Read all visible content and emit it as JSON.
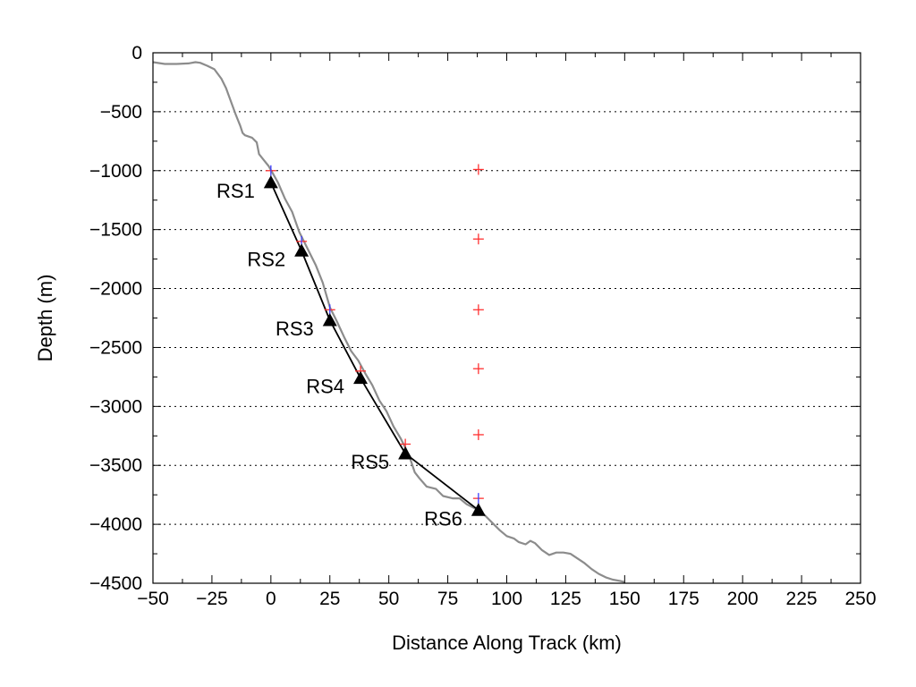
{
  "chart_data": {
    "type": "line",
    "title": "",
    "xlabel": "Distance Along Track (km)",
    "ylabel": "Depth (m)",
    "xlim": [
      -50,
      250
    ],
    "ylim": [
      -4500,
      0
    ],
    "xticks": [
      -50,
      -25,
      0,
      25,
      50,
      75,
      100,
      125,
      150,
      175,
      200,
      225,
      250
    ],
    "yticks": [
      0,
      -500,
      -1000,
      -1500,
      -2000,
      -2500,
      -3000,
      -3500,
      -4000,
      -4500
    ],
    "xtick_labels": [
      "−50",
      "−25",
      "0",
      "25",
      "50",
      "75",
      "100",
      "125",
      "150",
      "175",
      "200",
      "225",
      "250"
    ],
    "ytick_labels": [
      "0",
      "−500",
      "−1000",
      "−1500",
      "−2000",
      "−2500",
      "−3000",
      "−3500",
      "−4000",
      "−4500"
    ],
    "grid": {
      "horizontal_dotted": true,
      "vertical": false
    },
    "colors": {
      "bathymetry": "#8c8c8c",
      "track": "#000000",
      "station_marker": "#000000",
      "red_cross": "#ff3030",
      "blue_cross": "#3a3aff",
      "grid": "#000000"
    },
    "series": [
      {
        "kind": "bathymetry",
        "x": [
          -50,
          -45,
          -40,
          -35,
          -32,
          -30,
          -27,
          -24,
          -21,
          -19,
          -17,
          -15,
          -13,
          -12,
          -11,
          -8,
          -6,
          -5,
          -3,
          -1,
          1,
          3,
          6,
          9,
          12,
          15,
          19,
          22,
          25,
          28,
          31,
          34,
          37,
          40,
          43,
          46,
          49,
          52,
          55,
          57,
          59,
          61,
          63,
          66,
          70,
          73,
          77,
          80,
          83,
          86,
          88,
          91,
          94,
          97,
          100,
          103,
          105,
          108,
          110,
          112,
          115,
          118,
          121,
          124,
          127,
          130,
          133,
          136,
          139,
          142,
          145,
          148,
          150
        ],
        "y": [
          -80,
          -95,
          -95,
          -90,
          -80,
          -85,
          -110,
          -140,
          -220,
          -300,
          -410,
          -520,
          -620,
          -680,
          -700,
          -720,
          -760,
          -860,
          -910,
          -960,
          -1030,
          -1100,
          -1240,
          -1350,
          -1520,
          -1640,
          -1800,
          -1950,
          -2160,
          -2280,
          -2410,
          -2530,
          -2610,
          -2720,
          -2820,
          -2950,
          -3040,
          -3170,
          -3270,
          -3350,
          -3440,
          -3560,
          -3610,
          -3680,
          -3700,
          -3760,
          -3780,
          -3780,
          -3830,
          -3860,
          -3880,
          -3930,
          -3990,
          -4050,
          -4100,
          -4120,
          -4150,
          -4170,
          -4140,
          -4160,
          -4220,
          -4260,
          -4240,
          -4240,
          -4250,
          -4290,
          -4330,
          -4380,
          -4420,
          -4450,
          -4470,
          -4480,
          -4490
        ]
      },
      {
        "kind": "track",
        "x": [
          0,
          13,
          25,
          38,
          57,
          88
        ],
        "y": [
          -1100,
          -1680,
          -2270,
          -2760,
          -3400,
          -3880
        ]
      }
    ],
    "stations": [
      {
        "label": "RS1",
        "x": 0,
        "y": -1100
      },
      {
        "label": "RS2",
        "x": 13,
        "y": -1680
      },
      {
        "label": "RS3",
        "x": 25,
        "y": -2270
      },
      {
        "label": "RS4",
        "x": 38,
        "y": -2760
      },
      {
        "label": "RS5",
        "x": 57,
        "y": -3400
      },
      {
        "label": "RS6",
        "x": 88,
        "y": -3880
      }
    ],
    "crosses": [
      {
        "x": 0,
        "y": -1000,
        "color": "purple"
      },
      {
        "x": 13,
        "y": -1600,
        "color": "purple"
      },
      {
        "x": 25,
        "y": -2180,
        "color": "purple"
      },
      {
        "x": 38,
        "y": -2700,
        "color": "red"
      },
      {
        "x": 57,
        "y": -3320,
        "color": "red"
      },
      {
        "x": 88,
        "y": -3780,
        "color": "purple"
      },
      {
        "x": 88,
        "y": -990,
        "color": "red"
      },
      {
        "x": 88,
        "y": -1580,
        "color": "red"
      },
      {
        "x": 88,
        "y": -2180,
        "color": "red"
      },
      {
        "x": 88,
        "y": -2680,
        "color": "red"
      },
      {
        "x": 88,
        "y": -3240,
        "color": "red"
      }
    ]
  }
}
